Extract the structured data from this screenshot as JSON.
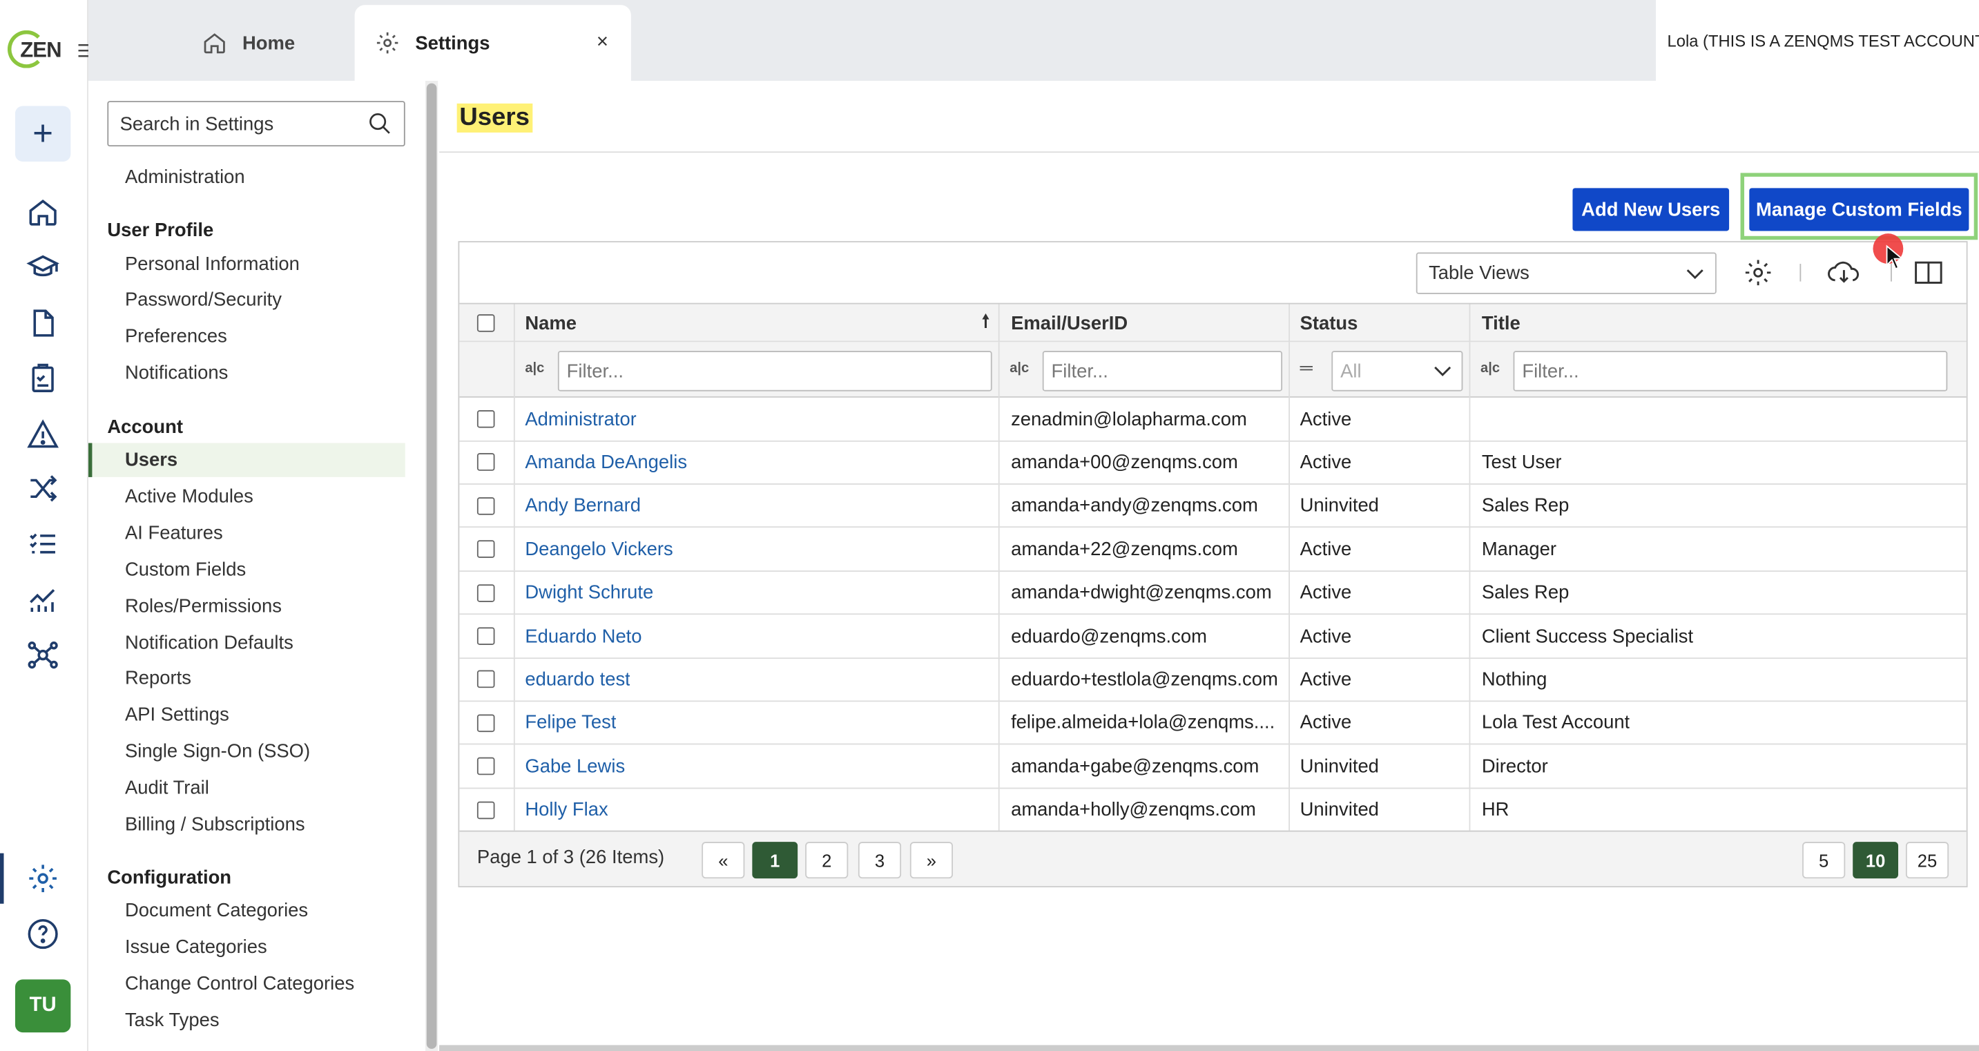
{
  "app": {
    "logo_text": "ZEN"
  },
  "tabs": {
    "home": "Home",
    "settings": "Settings",
    "close": "×"
  },
  "account_label": "Lola (THIS IS A ZENQMS TEST ACCOUNT)",
  "rail": {
    "icons": [
      "home-icon",
      "graduation-cap-icon",
      "document-icon",
      "clipboard-check-icon",
      "warning-icon",
      "shuffle-icon",
      "checklist-icon",
      "analytics-icon",
      "network-icon",
      "gear-icon",
      "help-icon"
    ],
    "avatar": "TU"
  },
  "sidebar": {
    "search_placeholder": "Search in Settings",
    "top_item": "Administration",
    "user_profile": {
      "title": "User Profile",
      "items": [
        "Personal Information",
        "Password/Security",
        "Preferences",
        "Notifications"
      ]
    },
    "account": {
      "title": "Account",
      "items": [
        "Users",
        "Active Modules",
        "AI Features",
        "Custom Fields",
        "Roles/Permissions",
        "Notification Defaults",
        "Reports",
        "API Settings",
        "Single Sign-On (SSO)",
        "Audit Trail",
        "Billing / Subscriptions"
      ]
    },
    "configuration": {
      "title": "Configuration",
      "items": [
        "Document Categories",
        "Issue Categories",
        "Change Control Categories",
        "Task Types"
      ]
    }
  },
  "page": {
    "title": "Users",
    "add_users": "Add New Users",
    "manage_custom_fields": "Manage Custom Fields",
    "table_views": "Table Views"
  },
  "table": {
    "columns": [
      "Name",
      "Email/UserID",
      "Status",
      "Title"
    ],
    "filter_placeholder": "Filter...",
    "status_filter": "All",
    "rows": [
      {
        "name": "Administrator",
        "email": "zenadmin@lolapharma.com",
        "status": "Active",
        "title": ""
      },
      {
        "name": "Amanda DeAngelis",
        "email": "amanda+00@zenqms.com",
        "status": "Active",
        "title": "Test User"
      },
      {
        "name": "Andy Bernard",
        "email": "amanda+andy@zenqms.com",
        "status": "Uninvited",
        "title": "Sales Rep"
      },
      {
        "name": "Deangelo Vickers",
        "email": "amanda+22@zenqms.com",
        "status": "Active",
        "title": "Manager"
      },
      {
        "name": "Dwight Schrute",
        "email": "amanda+dwight@zenqms.com",
        "status": "Active",
        "title": "Sales Rep"
      },
      {
        "name": "Eduardo Neto",
        "email": "eduardo@zenqms.com",
        "status": "Active",
        "title": "Client Success Specialist"
      },
      {
        "name": "eduardo test",
        "email": "eduardo+testlola@zenqms.com",
        "status": "Active",
        "title": "Nothing"
      },
      {
        "name": "Felipe Test",
        "email": "felipe.almeida+lola@zenqms....",
        "status": "Active",
        "title": "Lola Test Account"
      },
      {
        "name": "Gabe Lewis",
        "email": "amanda+gabe@zenqms.com",
        "status": "Uninvited",
        "title": "Director"
      },
      {
        "name": "Holly Flax",
        "email": "amanda+holly@zenqms.com",
        "status": "Uninvited",
        "title": "HR"
      }
    ]
  },
  "pager": {
    "info": "Page 1 of 3 (26 Items)",
    "first": "«",
    "pages": [
      "1",
      "2",
      "3"
    ],
    "next": "»",
    "sizes": [
      "5",
      "10",
      "25"
    ],
    "current_page": 1,
    "current_size": 10
  },
  "colors": {
    "primary": "#1048c8",
    "link": "#1f5fa8",
    "active_green": "#2f5a35",
    "highlight": "#fff176"
  }
}
